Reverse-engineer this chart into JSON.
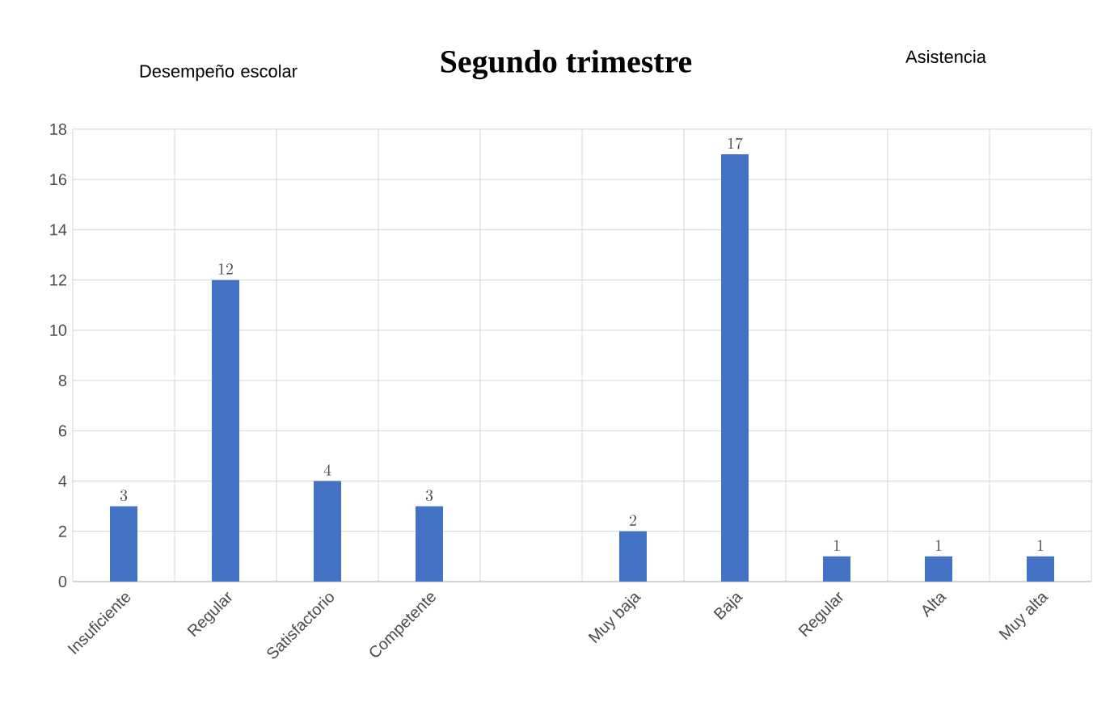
{
  "chart_data": {
    "type": "bar",
    "title": "Segundo trimestre",
    "categories": [
      "Insuficiente",
      "Regular",
      "Satisfactorio",
      "Competente",
      null,
      "Muy baja",
      "Baja",
      "Regular",
      "Alta",
      "Muy alta"
    ],
    "values": [
      3,
      12,
      4,
      3,
      null,
      2,
      17,
      1,
      1,
      1
    ],
    "color": "#4472c4",
    "ylim": [
      0,
      18
    ],
    "yticks": [
      0,
      2,
      4,
      6,
      8,
      10,
      12,
      14,
      16,
      18
    ],
    "grid": true,
    "data_labels": true,
    "annotations": [
      "Desempeño escolar",
      "Asistencia"
    ]
  }
}
